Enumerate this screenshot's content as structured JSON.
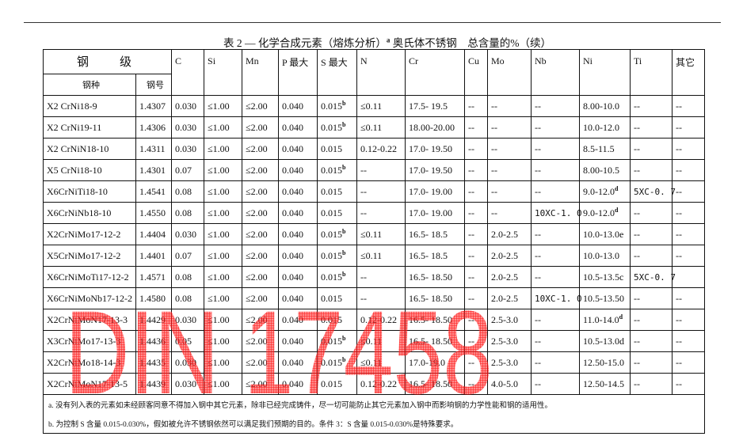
{
  "title": {
    "text": "表 2 — 化学合成元素（熔炼分析）",
    "sup": "a",
    "suffix": " 奥氏体不锈钢　总含量的%（续）"
  },
  "headers": {
    "grade": "钢　级",
    "type": "钢种",
    "number": "钢号",
    "cols": [
      "C",
      "Si",
      "Mn",
      "P 最大",
      "S 最大",
      "N",
      "Cr",
      "Cu",
      "Mo",
      "Nb",
      "Ni",
      "Ti",
      "其它"
    ]
  },
  "rows": [
    {
      "type": "X2 CrNi18-9",
      "num": "1.4307",
      "c": "0.030",
      "si": "≤1.00",
      "mn": "≤2.00",
      "p": "0.040",
      "s": "0.015",
      "s_sup": "b",
      "n": "≤0.11",
      "cr": "17.5- 19.5",
      "cu": "--",
      "mo": "--",
      "nb": "--",
      "ni": "8.00-10.0",
      "ni_sup": "",
      "ti": "--",
      "other": "--"
    },
    {
      "type": "X2 CrNi19-11",
      "num": "1.4306",
      "c": "0.030",
      "si": "≤1.00",
      "mn": "≤2.00",
      "p": "0.040",
      "s": "0.015",
      "s_sup": "b",
      "n": "≤0.11",
      "cr": "18.00-20.00",
      "cu": "--",
      "mo": "--",
      "nb": "--",
      "ni": "10.0-12.0",
      "ni_sup": "",
      "ti": "--",
      "other": "--"
    },
    {
      "type": "X2 CrNiN18-10",
      "num": "1.4311",
      "c": "0.030",
      "si": "≤1.00",
      "mn": "≤2.00",
      "p": "0.040",
      "s": "0.015",
      "s_sup": "",
      "n": "0.12-0.22",
      "cr": "17.0- 19.50",
      "cu": "--",
      "mo": "--",
      "nb": "--",
      "ni": "8.5-11.5",
      "ni_sup": "",
      "ti": "--",
      "other": "--"
    },
    {
      "type": "X5 CrNi18-10",
      "num": "1.4301",
      "c": "0.07",
      "si": "≤1.00",
      "mn": "≤2.00",
      "p": "0.040",
      "s": "0.015",
      "s_sup": "b",
      "n": "--",
      "cr": "17.0- 19.50",
      "cu": "--",
      "mo": "--",
      "nb": "--",
      "ni": "8.00-10.5",
      "ni_sup": "",
      "ti": "--",
      "other": "--"
    },
    {
      "type": "X6CrNiTi18-10",
      "num": "1.4541",
      "c": "0.08",
      "si": "≤1.00",
      "mn": "≤2.00",
      "p": "0.040",
      "s": "0.015",
      "s_sup": "",
      "n": "--",
      "cr": "17.0- 19.00",
      "cu": "--",
      "mo": "--",
      "nb": "--",
      "ni": "9.0-12.0",
      "ni_sup": "d",
      "ti": "5XC-0. 7",
      "other": "--"
    },
    {
      "type": "X6CrNiNb18-10",
      "num": "1.4550",
      "c": "0.08",
      "si": "≤1.00",
      "mn": "≤2.00",
      "p": "0.040",
      "s": "0.015",
      "s_sup": "",
      "n": "--",
      "cr": "17.0- 19.00",
      "cu": "--",
      "mo": "--",
      "nb": "10XC-1. 0",
      "ni": "9.0-12.0",
      "ni_sup": "d",
      "ti": "--",
      "other": "--"
    },
    {
      "type": "X2CrNiMo17-12-2",
      "num": "1.4404",
      "c": "0.030",
      "si": "≤1.00",
      "mn": "≤2.00",
      "p": "0.040",
      "s": "0.015",
      "s_sup": "b",
      "n": "≤0.11",
      "cr": "16.5- 18.5",
      "cu": "--",
      "mo": "2.0-2.5",
      "nb": "--",
      "ni": "10.0-13.0e",
      "ni_sup": "",
      "ti": "--",
      "other": "--"
    },
    {
      "type": "X5CrNiMo17-12-2",
      "num": "1.4401",
      "c": "0.07",
      "si": "≤1.00",
      "mn": "≤2.00",
      "p": "0.040",
      "s": "0.015",
      "s_sup": "b",
      "n": "≤0.11",
      "cr": "16.5- 18.5",
      "cu": "--",
      "mo": "2.0-2.5",
      "nb": "--",
      "ni": "10.0-13.0",
      "ni_sup": "",
      "ti": "--",
      "other": "--"
    },
    {
      "type": "X6CrNiMoTi17-12-2",
      "num": "1.4571",
      "c": "0.08",
      "si": "≤1.00",
      "mn": "≤2.00",
      "p": "0.040",
      "s": "0.015",
      "s_sup": "b",
      "n": "--",
      "cr": "16.5- 18.50",
      "cu": "--",
      "mo": "2.0-2.5",
      "nb": "--",
      "ni": "10.5-13.5c",
      "ni_sup": "",
      "ti": "5XC-0. 7",
      "other": ""
    },
    {
      "type": "X6CrNiMoNb17-12-2",
      "num": "1.4580",
      "c": "0.08",
      "si": "≤1.00",
      "mn": "≤2.00",
      "p": "0.040",
      "s": "0.015",
      "s_sup": "",
      "n": "--",
      "cr": "16.5- 18.50",
      "cu": "--",
      "mo": "2.0-2.5",
      "nb": "10XC-1. 0",
      "ni": "10.5-13.50",
      "ni_sup": "",
      "ti": "--",
      "other": "--"
    },
    {
      "type": "X2CrNiMoN17-13-3",
      "num": "1.4429",
      "c": "0.030",
      "si": "≤1.00",
      "mn": "≤2.00",
      "p": "0.040",
      "s": "0.015",
      "s_sup": "",
      "n": "0.12-0.22",
      "cr": "16.5- 18.50",
      "cu": "--",
      "mo": "2.5-3.0",
      "nb": "--",
      "ni": "11.0-14.0",
      "ni_sup": "d",
      "ti": "--",
      "other": "--"
    },
    {
      "type": "X3CrNiMo17-13-3",
      "num": "1.4436",
      "c": "0.05",
      "si": "≤1.00",
      "mn": "≤2.00",
      "p": "0.040",
      "s": "0.015",
      "s_sup": "b",
      "n": "≤0.11",
      "cr": "16.5- 18.50",
      "cu": "--",
      "mo": "2.5-3.0",
      "nb": "--",
      "ni": "10.5-13.0d",
      "ni_sup": "",
      "ti": "--",
      "other": "--"
    },
    {
      "type": "X2CrNiMo18-14-3",
      "num": "1.4435",
      "c": "0.030",
      "si": "≤1.00",
      "mn": "≤2.00",
      "p": "0.040",
      "s": "0.015",
      "s_sup": "b",
      "n": "≤0.11",
      "cr": "17.0-19.0",
      "cu": "--",
      "mo": "2.5-3.0",
      "nb": "--",
      "ni": "12.50-15.0",
      "ni_sup": "",
      "ti": "--",
      "other": "--"
    },
    {
      "type": "X2CrNiMoN17-13-5",
      "num": "1.4439",
      "c": "0.030",
      "si": "≤1.00",
      "mn": "≤2.00",
      "p": "0.040",
      "s": "0.015",
      "s_sup": "",
      "n": "0.12-0.22",
      "cr": "16.5- 18.50",
      "cu": "--",
      "mo": "4.0-5.0",
      "nb": "--",
      "ni": "12.50-14.5",
      "ni_sup": "",
      "ti": "--",
      "other": "--"
    }
  ],
  "footnotes": [
    "a. 没有列入表的元素如未经顾客同意不得加入钢中其它元素，除非已经完成铸件，尽一切可能防止其它元素加入钢中而影响钢的力学性能和钢的适用性。",
    "b. 为控制 S 含量 0.015-0.030%，假如被允许不锈钢依然可以满足我们预期的目的。条件 3：S 含量 0.015-0.030%是特殊要求。"
  ],
  "watermark": {
    "text": "DIN 17458",
    "color": "#ff0000"
  }
}
